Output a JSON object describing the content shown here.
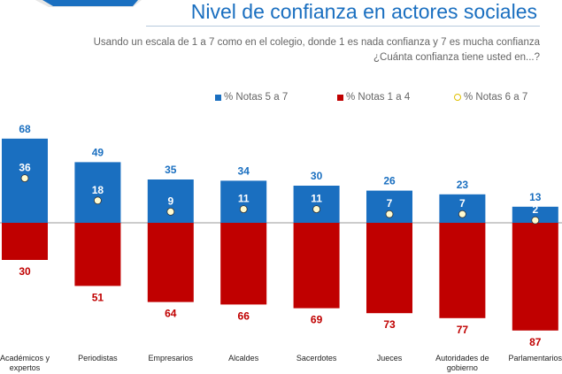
{
  "header": {
    "title": "Nivel de confianza en actores sociales",
    "subtitle_line1": "Usando un escala de 1 a 7 como en el colegio, donde 1 es nada confianza y 7 es mucha confianza",
    "subtitle_line2": "¿Cuánta confianza tiene usted en...?"
  },
  "chart_data": {
    "type": "bar",
    "categories": [
      "Académicos y expertos",
      "Periodistas",
      "Empresarios",
      "Alcaldes",
      "Sacerdotes",
      "Jueces",
      "Autoridades de gobierno",
      "Parlamentarios"
    ],
    "series": [
      {
        "name": "% Notas 5 a 7",
        "color": "#1a6fc0",
        "values": [
          68,
          49,
          35,
          34,
          30,
          26,
          23,
          13
        ]
      },
      {
        "name": "% Notas 1 a 4",
        "color": "#c00000",
        "values": [
          30,
          51,
          64,
          66,
          69,
          73,
          77,
          87
        ],
        "direction": "down"
      },
      {
        "name": "% Notas 6 a 7",
        "color": "#fffbd0",
        "marker": "circle",
        "values": [
          36,
          18,
          9,
          11,
          11,
          7,
          7,
          2
        ]
      }
    ],
    "legend": "top-right",
    "grid": false
  }
}
